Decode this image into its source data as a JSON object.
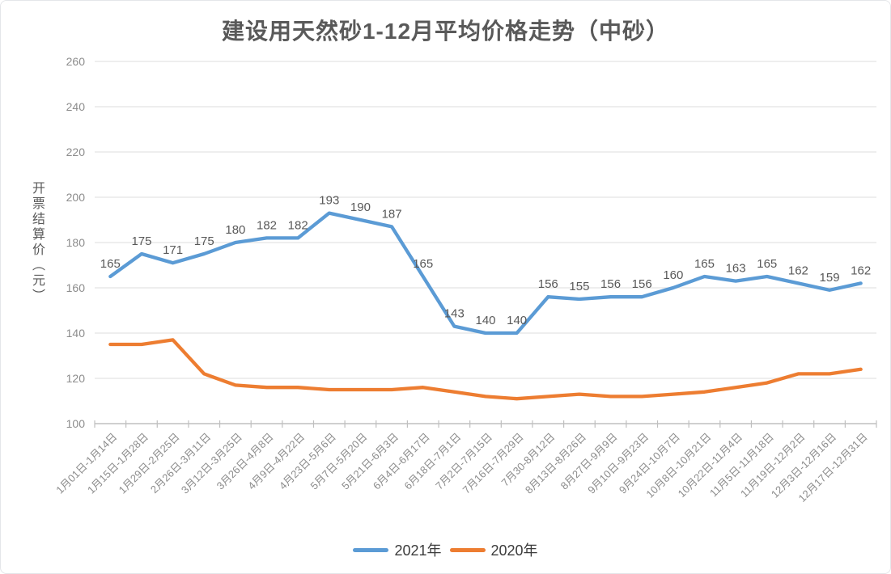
{
  "chart_data": {
    "type": "line",
    "title": "建设用天然砂1-12月平均价格走势（中砂）",
    "ylabel": "开票结算价（元）",
    "xlabel": "",
    "ylim": [
      100,
      260
    ],
    "yticks": [
      100,
      120,
      140,
      160,
      180,
      200,
      220,
      240,
      260
    ],
    "grid": "horizontal",
    "legend_position": "bottom",
    "x_label_rotation": -45,
    "categories": [
      "1月01日-1月14日",
      "1月15日-1月28日",
      "1月29日-2月25日",
      "2月26日-3月11日",
      "3月12日-3月25日",
      "3月26日-4月8日",
      "4月9日-4月22日",
      "4月23日-5月6日",
      "5月7日-5月20日",
      "5月21日-6月3日",
      "6月4日-6月17日",
      "6月18日-7月1日",
      "7月2日-7月15日",
      "7月16日-7月29日",
      "7月30-8月12日",
      "8月13日-8月26日",
      "8月27日-9月9日",
      "9月10日-9月23日",
      "9月24日-10月7日",
      "10月8日-10月21日",
      "10月22日-11月4日",
      "11月5日-11月18日",
      "11月19日-12月2日",
      "12月3日-12月16日",
      "12月17日-12月31日"
    ],
    "series": [
      {
        "name": "2021年",
        "color": "#5B9BD5",
        "data_labels": true,
        "values": [
          165,
          175,
          171,
          175,
          180,
          182,
          182,
          193,
          190,
          187,
          165,
          143,
          140,
          140,
          156,
          155,
          156,
          156,
          160,
          165,
          163,
          165,
          162,
          159,
          162
        ]
      },
      {
        "name": "2020年",
        "color": "#ED7D31",
        "data_labels": false,
        "values": [
          135,
          135,
          137,
          122,
          117,
          116,
          116,
          115,
          115,
          115,
          116,
          114,
          112,
          111,
          112,
          113,
          112,
          112,
          113,
          114,
          116,
          118,
          122,
          122,
          124
        ]
      }
    ],
    "palette": {
      "grid_color": "#e3e3e3",
      "axis_color": "#bfbfbf",
      "tick_label_color": "#8c8c8c",
      "data_label_color": "#595959",
      "title_color": "#595959"
    }
  }
}
